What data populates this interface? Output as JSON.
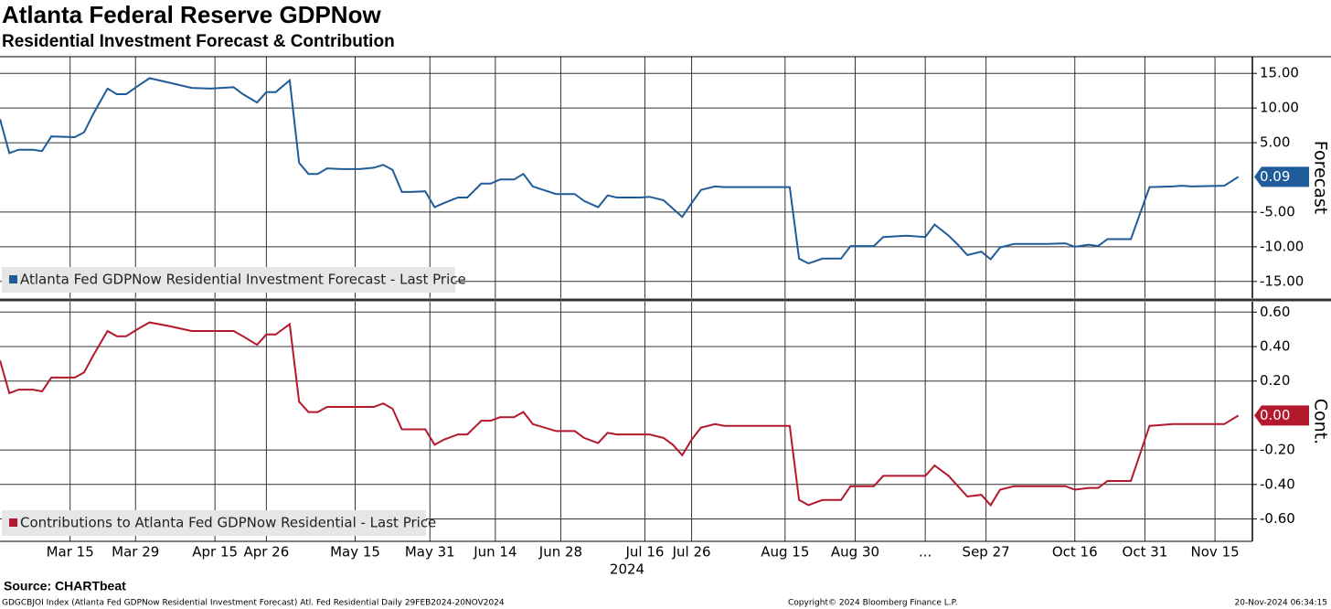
{
  "chart_data": [
    {
      "type": "line",
      "title": "Atlanta Federal Reserve GDPNow",
      "subtitle": "Residential Investment Forecast & Contribution",
      "ylabel": "Forecast",
      "x": [
        "2024-02-29",
        "2024-03-02",
        "2024-03-04",
        "2024-03-07",
        "2024-03-09",
        "2024-03-11",
        "2024-03-16",
        "2024-03-18",
        "2024-03-20",
        "2024-03-23",
        "2024-03-25",
        "2024-03-27",
        "2024-03-30",
        "2024-04-01",
        "2024-04-05",
        "2024-04-10",
        "2024-04-14",
        "2024-04-19",
        "2024-04-21",
        "2024-04-24",
        "2024-04-26",
        "2024-04-28",
        "2024-05-01",
        "2024-05-03",
        "2024-05-05",
        "2024-05-07",
        "2024-05-09",
        "2024-05-12",
        "2024-05-16",
        "2024-05-19",
        "2024-05-21",
        "2024-05-23",
        "2024-05-25",
        "2024-05-27",
        "2024-05-30",
        "2024-06-01",
        "2024-06-03",
        "2024-06-06",
        "2024-06-08",
        "2024-06-11",
        "2024-06-13",
        "2024-06-15",
        "2024-06-18",
        "2024-06-20",
        "2024-06-22",
        "2024-06-27",
        "2024-07-01",
        "2024-07-03",
        "2024-07-06",
        "2024-07-08",
        "2024-07-10",
        "2024-07-15",
        "2024-07-17",
        "2024-07-20",
        "2024-07-22",
        "2024-07-24",
        "2024-07-26",
        "2024-07-28",
        "2024-07-31",
        "2024-08-02",
        "2024-08-16",
        "2024-08-18",
        "2024-08-20",
        "2024-08-23",
        "2024-08-27",
        "2024-08-29",
        "2024-09-03",
        "2024-09-05",
        "2024-09-10",
        "2024-09-14",
        "2024-09-16",
        "2024-09-19",
        "2024-09-21",
        "2024-09-23",
        "2024-09-26",
        "2024-09-28",
        "2024-09-30",
        "2024-10-03",
        "2024-10-10",
        "2024-10-14",
        "2024-10-16",
        "2024-10-19",
        "2024-10-21",
        "2024-10-23",
        "2024-10-28",
        "2024-11-01",
        "2024-11-06",
        "2024-11-08",
        "2024-11-10",
        "2024-11-17",
        "2024-11-20"
      ],
      "series": [
        {
          "name": "Atlanta Fed GDPNow Residential Investment Forecast - Last Price",
          "color": "#1f5c99",
          "last_label": "0.09",
          "values": [
            8.4,
            3.5,
            4.0,
            4.0,
            3.8,
            5.9,
            5.8,
            6.5,
            9.2,
            12.8,
            12.0,
            12.0,
            13.4,
            14.3,
            13.7,
            12.9,
            12.8,
            13.0,
            12.0,
            10.8,
            12.3,
            12.3,
            14.0,
            2.1,
            0.5,
            0.5,
            1.3,
            1.2,
            1.2,
            1.4,
            1.8,
            1.1,
            -2.1,
            -2.1,
            -2.0,
            -4.3,
            -3.7,
            -2.9,
            -2.9,
            -0.9,
            -0.9,
            -0.3,
            -0.3,
            0.5,
            -1.3,
            -2.4,
            -2.4,
            -3.4,
            -4.3,
            -2.6,
            -2.9,
            -2.9,
            -2.8,
            -3.3,
            -4.5,
            -5.7,
            -3.7,
            -1.8,
            -1.3,
            -1.4,
            -1.4,
            -11.7,
            -12.4,
            -11.7,
            -11.7,
            -9.9,
            -9.9,
            -8.6,
            -8.4,
            -8.6,
            -6.8,
            -8.4,
            -9.7,
            -11.2,
            -10.7,
            -11.8,
            -10.1,
            -9.6,
            -9.6,
            -9.5,
            -10.0,
            -9.7,
            -9.9,
            -8.9,
            -8.9,
            -1.4,
            -1.3,
            -1.2,
            -1.3,
            -1.2,
            0.09
          ]
        }
      ],
      "xlim": [
        "2024-02-29",
        "2024-11-23"
      ],
      "xticks": [
        "2024-03-15",
        "2024-03-29",
        "2024-04-15",
        "2024-04-26",
        "2024-05-15",
        "2024-05-31",
        "2024-06-14",
        "2024-06-28",
        "2024-07-16",
        "2024-07-26",
        "2024-08-15",
        "2024-08-30",
        "2024-09-14",
        "2024-09-27",
        "2024-10-16",
        "2024-10-31",
        "2024-11-15"
      ],
      "ylim": [
        -17.4,
        17.4
      ],
      "yticks": [
        {
          "value": 15,
          "label": "15.00"
        },
        {
          "value": 10,
          "label": "10.00"
        },
        {
          "value": 5,
          "label": "5.00"
        },
        {
          "value": -5,
          "label": "-5.00"
        },
        {
          "value": -10,
          "label": "-10.00"
        },
        {
          "value": -15,
          "label": "-15.00"
        }
      ],
      "grid": true
    },
    {
      "type": "line",
      "ylabel": "Cont.",
      "xlabel": "2024",
      "x": [
        "2024-02-29",
        "2024-03-02",
        "2024-03-04",
        "2024-03-07",
        "2024-03-09",
        "2024-03-11",
        "2024-03-16",
        "2024-03-18",
        "2024-03-20",
        "2024-03-23",
        "2024-03-25",
        "2024-03-27",
        "2024-03-30",
        "2024-04-01",
        "2024-04-05",
        "2024-04-10",
        "2024-04-14",
        "2024-04-19",
        "2024-04-21",
        "2024-04-24",
        "2024-04-26",
        "2024-04-28",
        "2024-05-01",
        "2024-05-03",
        "2024-05-05",
        "2024-05-07",
        "2024-05-09",
        "2024-05-12",
        "2024-05-16",
        "2024-05-19",
        "2024-05-21",
        "2024-05-23",
        "2024-05-25",
        "2024-05-27",
        "2024-05-30",
        "2024-06-01",
        "2024-06-03",
        "2024-06-06",
        "2024-06-08",
        "2024-06-11",
        "2024-06-13",
        "2024-06-15",
        "2024-06-18",
        "2024-06-20",
        "2024-06-22",
        "2024-06-27",
        "2024-07-01",
        "2024-07-03",
        "2024-07-06",
        "2024-07-08",
        "2024-07-10",
        "2024-07-15",
        "2024-07-17",
        "2024-07-20",
        "2024-07-22",
        "2024-07-24",
        "2024-07-26",
        "2024-07-28",
        "2024-07-31",
        "2024-08-02",
        "2024-08-16",
        "2024-08-18",
        "2024-08-20",
        "2024-08-23",
        "2024-08-27",
        "2024-08-29",
        "2024-09-03",
        "2024-09-05",
        "2024-09-10",
        "2024-09-14",
        "2024-09-16",
        "2024-09-19",
        "2024-09-21",
        "2024-09-23",
        "2024-09-26",
        "2024-09-28",
        "2024-09-30",
        "2024-10-03",
        "2024-10-10",
        "2024-10-14",
        "2024-10-16",
        "2024-10-19",
        "2024-10-21",
        "2024-10-23",
        "2024-10-28",
        "2024-11-01",
        "2024-11-06",
        "2024-11-08",
        "2024-11-10",
        "2024-11-17",
        "2024-11-20"
      ],
      "series": [
        {
          "name": "Contributions to Atlanta Fed GDPNow Residential - Last Price",
          "color": "#b3182d",
          "last_label": "0.00",
          "values": [
            0.32,
            0.13,
            0.15,
            0.15,
            0.14,
            0.22,
            0.22,
            0.25,
            0.35,
            0.49,
            0.46,
            0.46,
            0.51,
            0.54,
            0.52,
            0.49,
            0.49,
            0.49,
            0.46,
            0.41,
            0.47,
            0.47,
            0.53,
            0.08,
            0.02,
            0.02,
            0.05,
            0.05,
            0.05,
            0.05,
            0.07,
            0.04,
            -0.08,
            -0.08,
            -0.08,
            -0.17,
            -0.14,
            -0.11,
            -0.11,
            -0.03,
            -0.03,
            -0.01,
            -0.01,
            0.02,
            -0.05,
            -0.09,
            -0.09,
            -0.13,
            -0.16,
            -0.1,
            -0.11,
            -0.11,
            -0.11,
            -0.13,
            -0.17,
            -0.23,
            -0.14,
            -0.07,
            -0.05,
            -0.06,
            -0.06,
            -0.49,
            -0.52,
            -0.49,
            -0.49,
            -0.41,
            -0.41,
            -0.35,
            -0.35,
            -0.35,
            -0.29,
            -0.35,
            -0.41,
            -0.47,
            -0.46,
            -0.52,
            -0.43,
            -0.41,
            -0.41,
            -0.41,
            -0.43,
            -0.42,
            -0.42,
            -0.38,
            -0.38,
            -0.06,
            -0.05,
            -0.05,
            -0.05,
            -0.05,
            0.0
          ]
        }
      ],
      "xlim": [
        "2024-02-29",
        "2024-11-23"
      ],
      "xticks": [
        {
          "value": "2024-03-15",
          "label": "Mar 15"
        },
        {
          "value": "2024-03-29",
          "label": "Mar 29"
        },
        {
          "value": "2024-04-15",
          "label": "Apr 15"
        },
        {
          "value": "2024-04-26",
          "label": "Apr 26"
        },
        {
          "value": "2024-05-15",
          "label": "May 15"
        },
        {
          "value": "2024-05-31",
          "label": "May 31"
        },
        {
          "value": "2024-06-14",
          "label": "Jun 14"
        },
        {
          "value": "2024-06-28",
          "label": "Jun 28"
        },
        {
          "value": "2024-07-16",
          "label": "Jul 16"
        },
        {
          "value": "2024-07-26",
          "label": "Jul 26"
        },
        {
          "value": "2024-08-15",
          "label": "Aug 15"
        },
        {
          "value": "2024-08-30",
          "label": "Aug 30"
        },
        {
          "value": "2024-09-14",
          "label": "..."
        },
        {
          "value": "2024-09-27",
          "label": "Sep 27"
        },
        {
          "value": "2024-10-16",
          "label": "Oct 16"
        },
        {
          "value": "2024-10-31",
          "label": "Oct 31"
        },
        {
          "value": "2024-11-15",
          "label": "Nov 15"
        }
      ],
      "ylim": [
        -0.73,
        0.66
      ],
      "yticks": [
        {
          "value": 0.6,
          "label": "0.60"
        },
        {
          "value": 0.4,
          "label": "0.40"
        },
        {
          "value": 0.2,
          "label": "0.20"
        },
        {
          "value": -0.2,
          "label": "-0.20"
        },
        {
          "value": -0.4,
          "label": "-0.40"
        },
        {
          "value": -0.6,
          "label": "-0.60"
        }
      ],
      "grid": true
    }
  ],
  "source": "Source: CHARTbeat",
  "footer": {
    "left": "GDGCBJOI Index (Atlanta Fed GDPNow Residential Investment Forecast) Atl. Fed Residential  Daily 29FEB2024-20NOV2024",
    "center": "Copyright© 2024 Bloomberg Finance L.P.",
    "right": "20-Nov-2024 06:34:15"
  }
}
